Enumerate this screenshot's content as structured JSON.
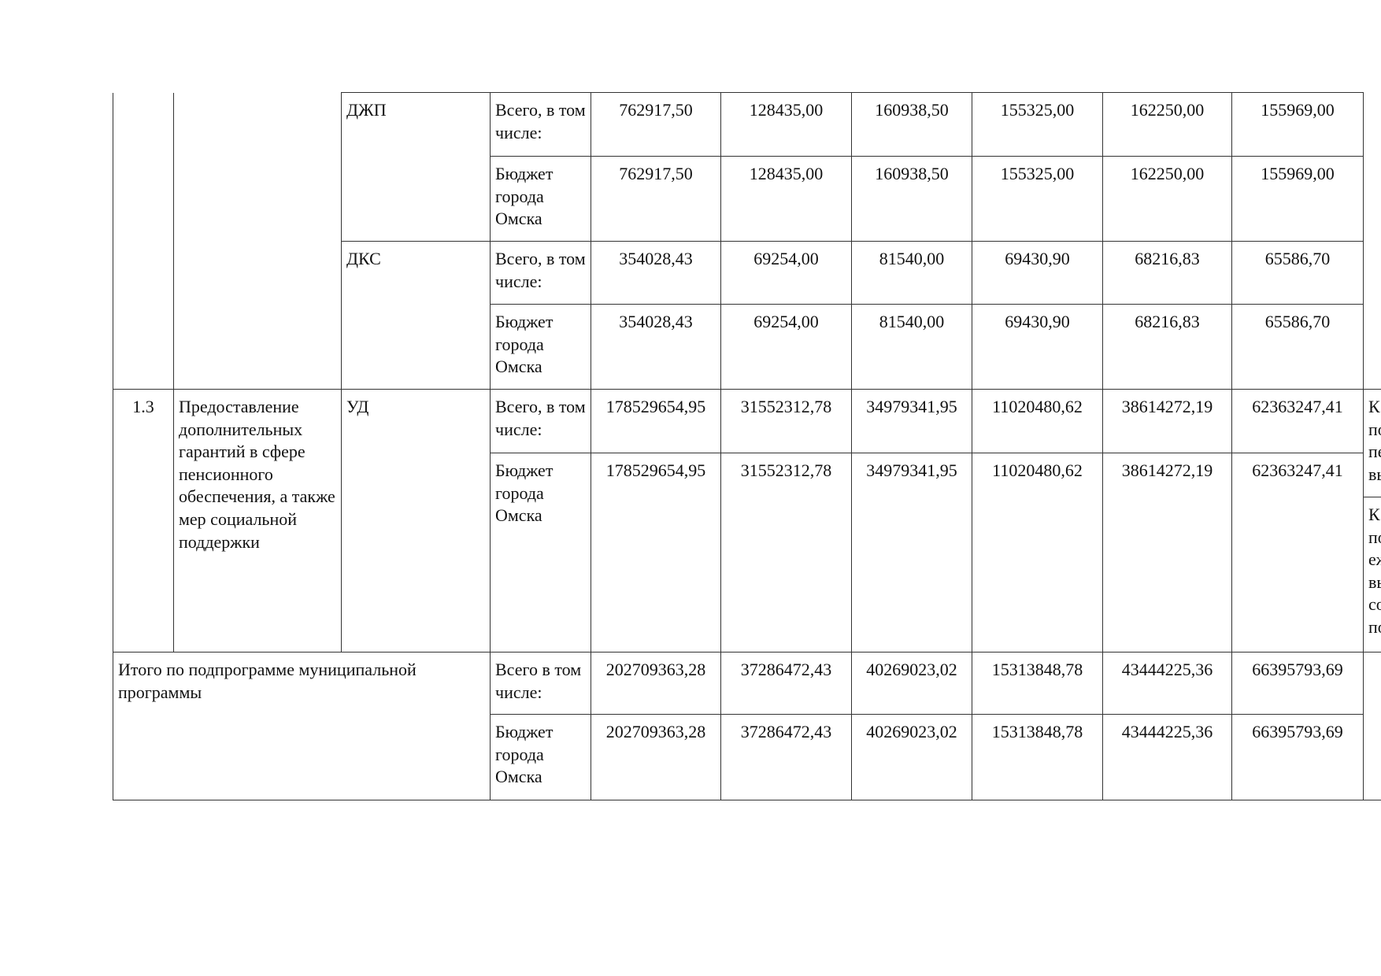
{
  "rows": [
    {
      "org": "ДЖП",
      "source": "Всего, в том числе:",
      "values": [
        "762917,50",
        "128435,00",
        "160938,50",
        "155325,00",
        "162250,00",
        "155969,00"
      ]
    },
    {
      "source": "Бюджет города Омска",
      "values": [
        "762917,50",
        "128435,00",
        "160938,50",
        "155325,00",
        "162250,00",
        "155969,00"
      ]
    },
    {
      "org": "ДКС",
      "source": "Всего, в том числе:",
      "values": [
        "354028,43",
        "69254,00",
        "81540,00",
        "69430,90",
        "68216,83",
        "65586,70"
      ]
    },
    {
      "source": "Бюджет города Омска",
      "values": [
        "354028,43",
        "69254,00",
        "81540,00",
        "69430,90",
        "68216,83",
        "65586,70"
      ]
    },
    {
      "number": "1.3",
      "name": "Предоставление дополнительных гарантий в сфере пенсионного обеспечения, а также мер социальной поддержки",
      "org": "УД",
      "source": "Всего, в том числе:",
      "values": [
        "178529654,95",
        "31552312,78",
        "34979341,95",
        "11020480,62",
        "38614272,19",
        "62363247,41"
      ],
      "indicator_1": [
        "К",
        "по",
        "пе",
        "вы"
      ]
    },
    {
      "source": "Бюджет города Омска",
      "values": [
        "178529654,95",
        "31552312,78",
        "34979341,95",
        "11020480,62",
        "38614272,19",
        "62363247,41"
      ],
      "indicator_2": [
        "К",
        "по",
        "еж",
        "вы",
        "со",
        "по"
      ]
    }
  ],
  "total": {
    "label": "Итого по подпрограмме муниципальной программы",
    "rows": [
      {
        "source": "Всего в том числе:",
        "values": [
          "202709363,28",
          "37286472,43",
          "40269023,02",
          "15313848,78",
          "43444225,36",
          "66395793,69"
        ]
      },
      {
        "source": "Бюджет города Омска",
        "values": [
          "202709363,28",
          "37286472,43",
          "40269023,02",
          "15313848,78",
          "43444225,36",
          "66395793,69"
        ]
      }
    ]
  }
}
